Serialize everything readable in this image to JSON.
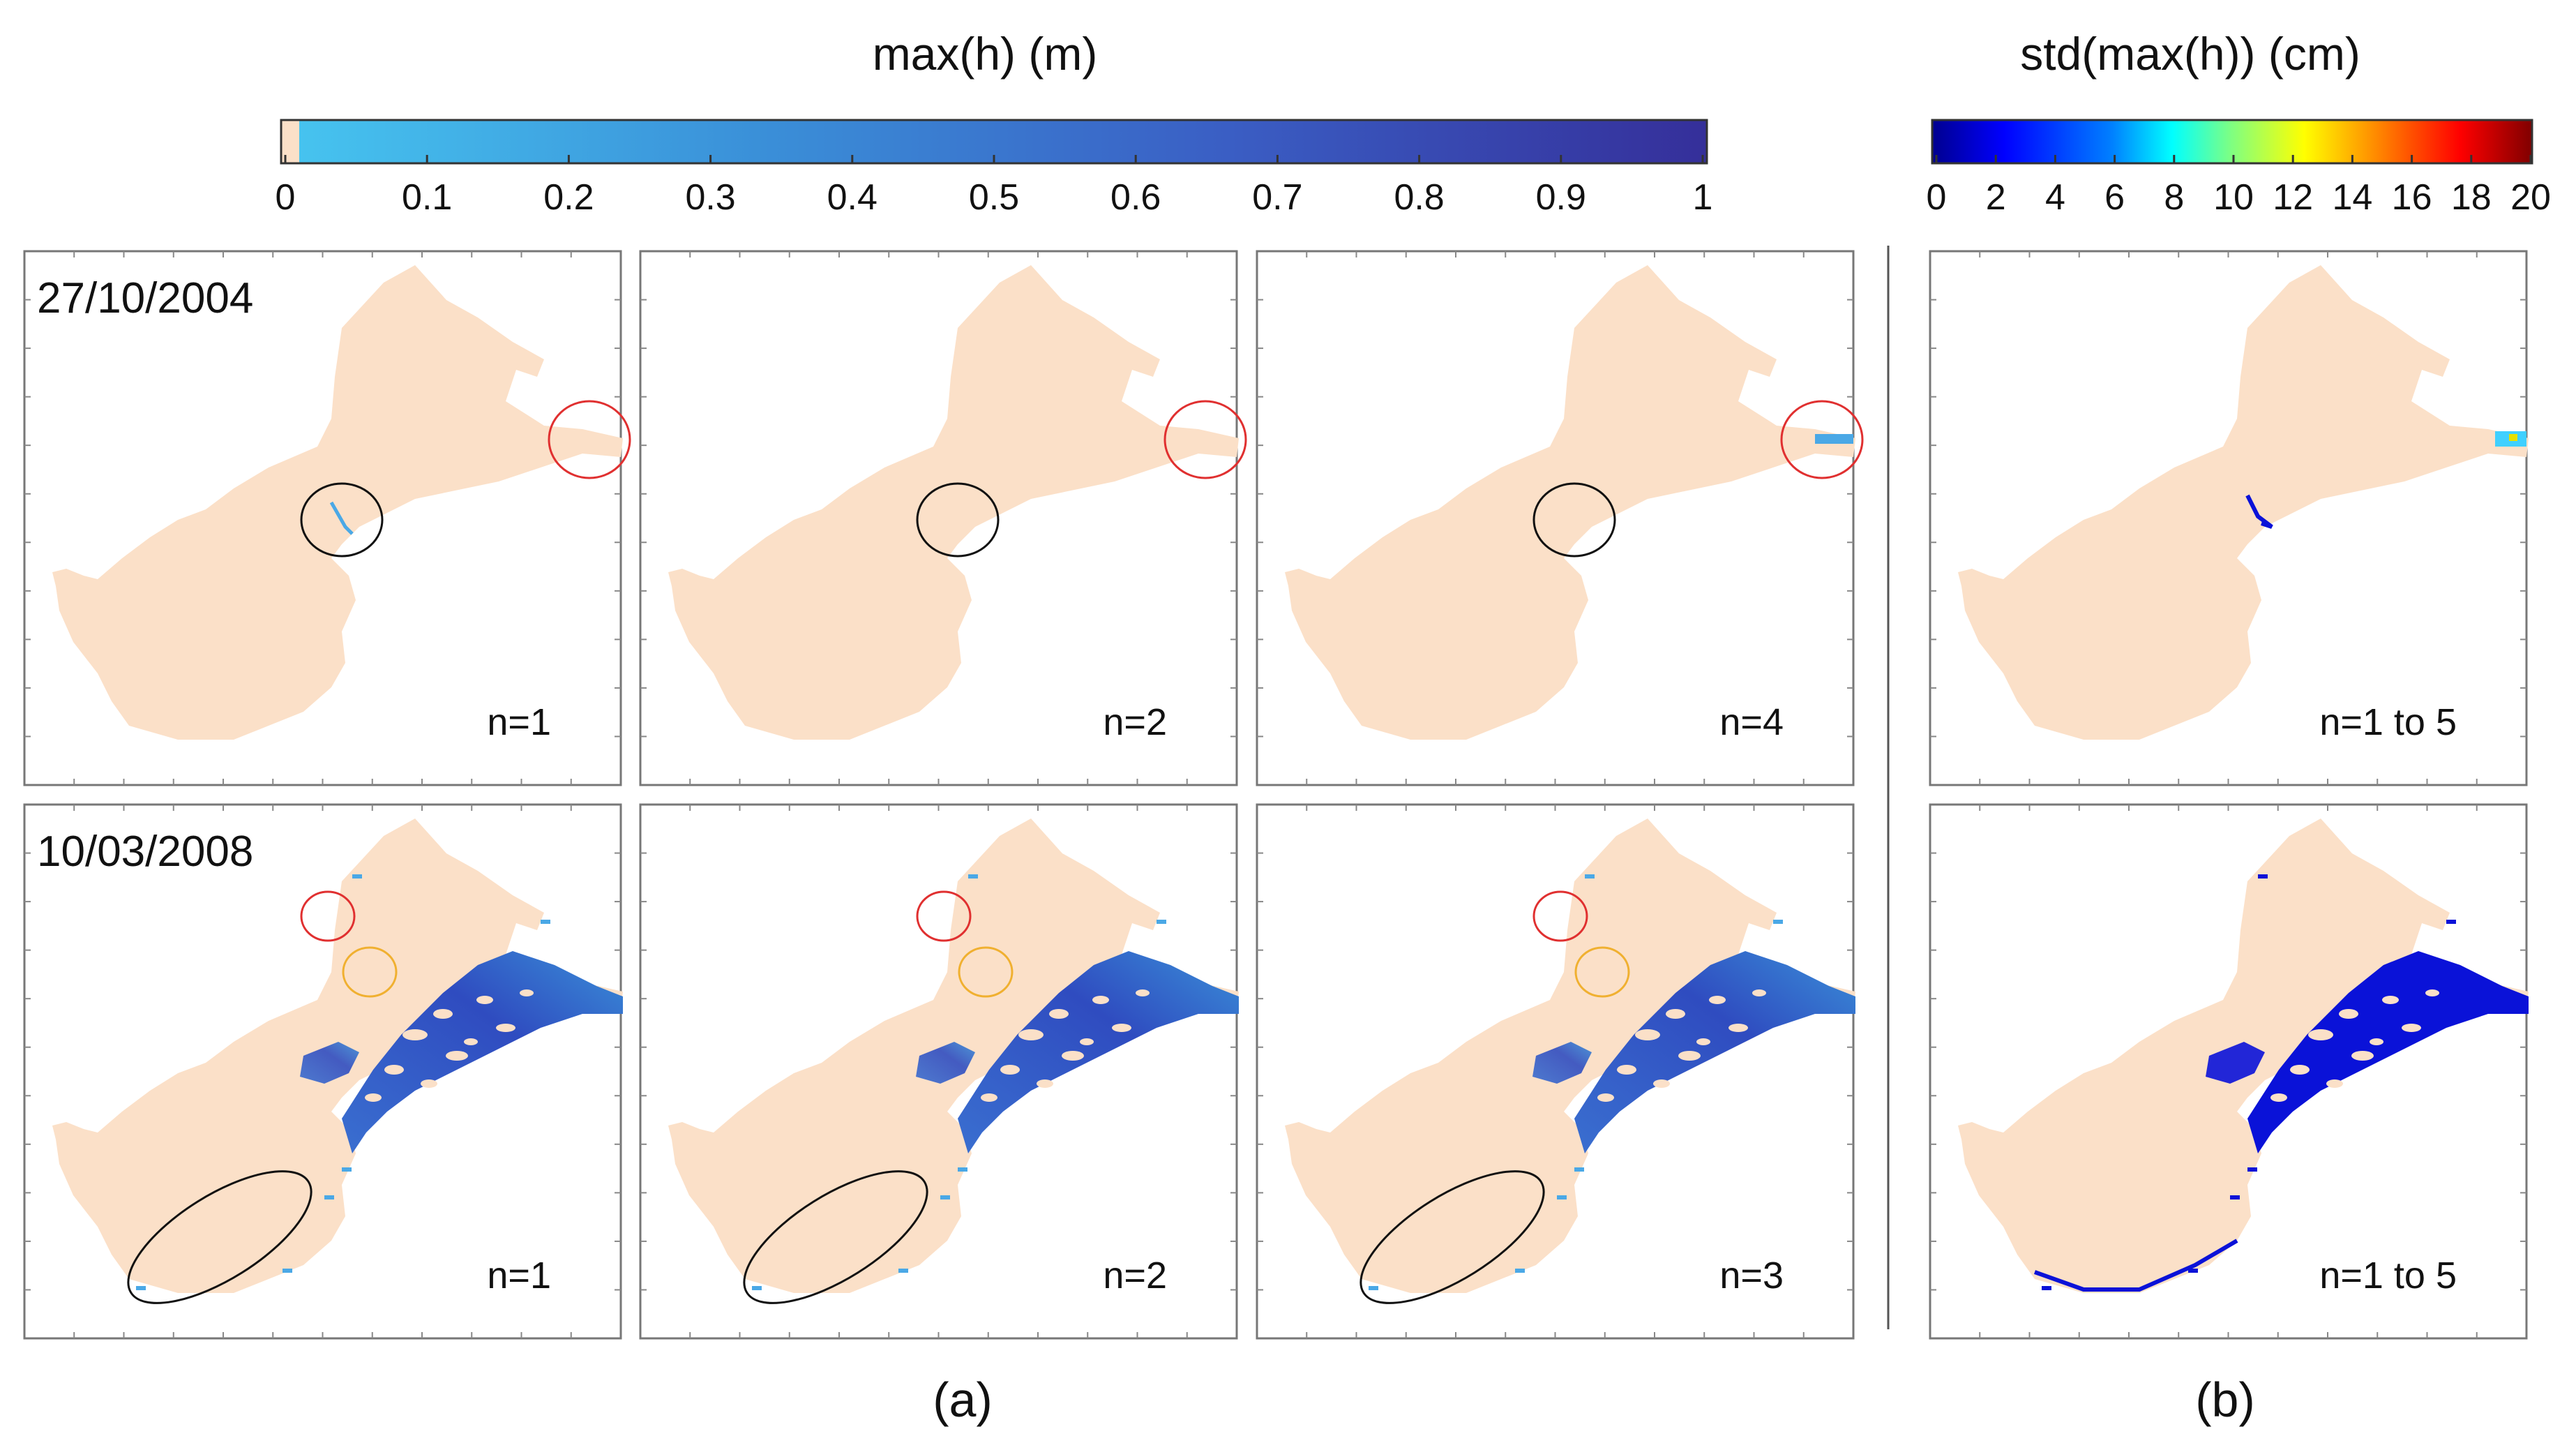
{
  "colorbars": {
    "max_h": {
      "title": "max(h) (m)",
      "ticks": [
        "0",
        "0.1",
        "0.2",
        "0.3",
        "0.4",
        "0.5",
        "0.6",
        "0.7",
        "0.8",
        "0.9",
        "1"
      ],
      "range": [
        0,
        1
      ],
      "dry_color": "#fbe0c8",
      "stops": [
        "#46c3ef",
        "#3a8fd8",
        "#3a5ec4",
        "#352f9a"
      ]
    },
    "std_max_h": {
      "title": "std(max(h)) (cm)",
      "ticks": [
        "0",
        "2",
        "4",
        "6",
        "8",
        "10",
        "12",
        "14",
        "16",
        "18",
        "20"
      ],
      "range": [
        0,
        20
      ],
      "stops": [
        "#00008f",
        "#0000ff",
        "#0080ff",
        "#00ffff",
        "#80ff80",
        "#ffff00",
        "#ff8000",
        "#ff0000",
        "#800000"
      ]
    }
  },
  "rows": [
    {
      "date": "27/10/2004",
      "panels": [
        {
          "label": "n=1",
          "group": "a"
        },
        {
          "label": "n=2",
          "group": "a"
        },
        {
          "label": "n=4",
          "group": "a"
        },
        {
          "label": "n=1 to 5",
          "group": "b"
        }
      ]
    },
    {
      "date": "10/03/2008",
      "panels": [
        {
          "label": "n=1",
          "group": "a"
        },
        {
          "label": "n=2",
          "group": "a"
        },
        {
          "label": "n=3",
          "group": "a"
        },
        {
          "label": "n=1 to 5",
          "group": "b"
        }
      ]
    }
  ],
  "captions": {
    "a": "(a)",
    "b": "(b)"
  },
  "colors": {
    "land": "#fbe0c8",
    "flood_light": "#4aa8e6",
    "flood_deep": "#2f4cc0",
    "std_low": "#0a12d8",
    "circle_red": "#e03030",
    "circle_black": "#111111",
    "circle_orange": "#f0b030"
  }
}
